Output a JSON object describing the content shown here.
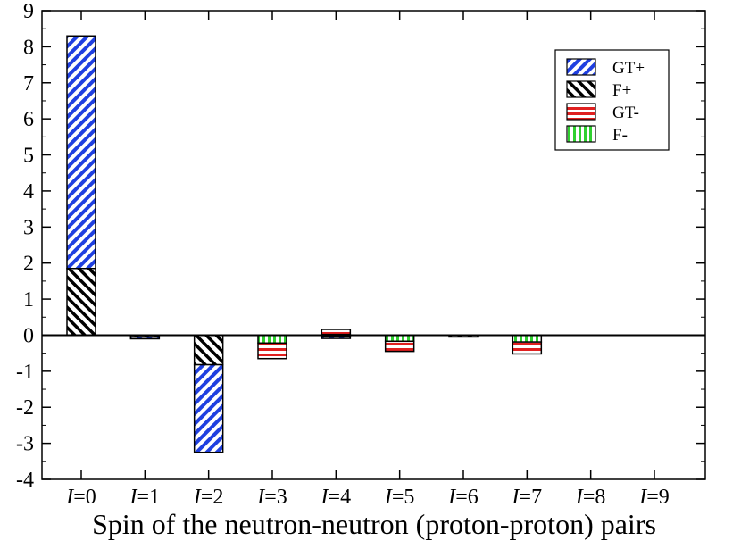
{
  "chart_data": {
    "type": "bar",
    "stacked": true,
    "title": "",
    "xlabel": "Spin of the neutron-neutron (proton-proton) pairs",
    "ylabel": "",
    "ylim": [
      -4,
      9
    ],
    "yticks": [
      "-4",
      "-3",
      "-2",
      "-1",
      "0",
      "1",
      "2",
      "3",
      "4",
      "5",
      "6",
      "7",
      "8",
      "9"
    ],
    "categories": [
      {
        "var": "I",
        "rest": "=0"
      },
      {
        "var": "I",
        "rest": "=1"
      },
      {
        "var": "I",
        "rest": "=2"
      },
      {
        "var": "I",
        "rest": "=3"
      },
      {
        "var": "I",
        "rest": "=4"
      },
      {
        "var": "I",
        "rest": "=5"
      },
      {
        "var": "I",
        "rest": "=6"
      },
      {
        "var": "I",
        "rest": "=7"
      },
      {
        "var": "I",
        "rest": "=8"
      },
      {
        "var": "I",
        "rest": "=9"
      }
    ],
    "series": [
      {
        "name": "GT+",
        "color": "#1f3fe0",
        "pattern": "diagonal-stripes",
        "values": [
          6.45,
          -0.01,
          -2.43,
          0.0,
          -0.03,
          0.0,
          0.0,
          0.0,
          0.0,
          0.0
        ]
      },
      {
        "name": "F+",
        "color": "#000000",
        "pattern": "diagonal-stripes",
        "values": [
          1.85,
          -0.05,
          -0.82,
          0.0,
          -0.04,
          0.0,
          -0.01,
          0.0,
          0.0,
          0.0
        ]
      },
      {
        "name": "GT-",
        "color": "#e02020",
        "pattern": "horizontal-stripes",
        "values": [
          0.0,
          0.0,
          0.0,
          -0.43,
          0.14,
          -0.28,
          0.0,
          -0.33,
          0.0,
          0.0
        ]
      },
      {
        "name": "F-",
        "color": "#30d030",
        "pattern": "vertical-stripes",
        "values": [
          0.0,
          0.0,
          0.0,
          -0.22,
          0.02,
          -0.17,
          0.0,
          -0.19,
          0.0,
          0.0
        ]
      }
    ],
    "grid": false,
    "legend": "top-right"
  }
}
